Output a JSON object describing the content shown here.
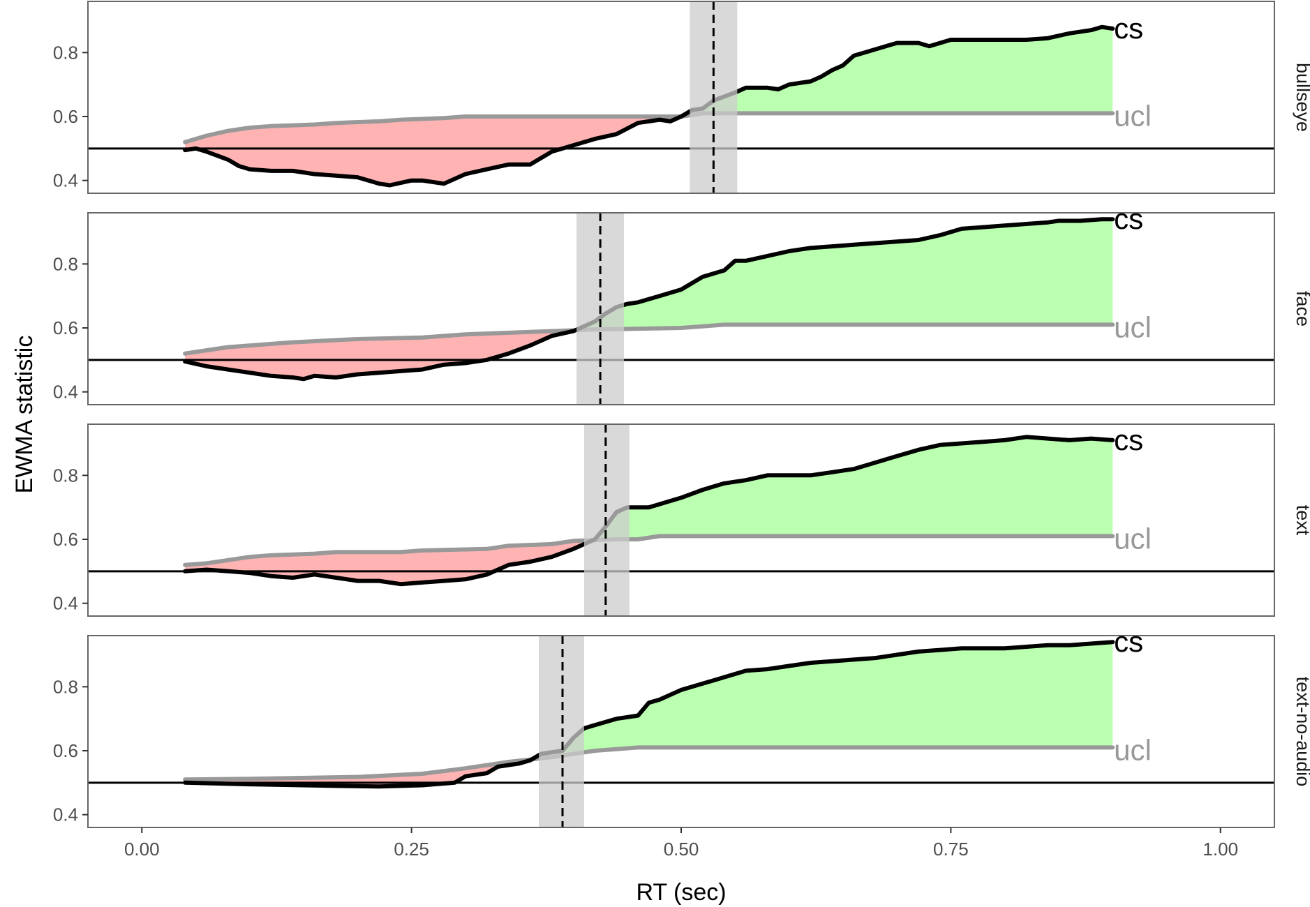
{
  "chart_data": {
    "type": "line",
    "xlabel": "RT (sec)",
    "ylabel": "EWMA statistic",
    "xlim": [
      -0.05,
      1.05
    ],
    "ylim": [
      0.36,
      0.96
    ],
    "x_ticks": [
      0.0,
      0.25,
      0.5,
      0.75,
      1.0
    ],
    "x_tick_labels": [
      "0.00",
      "0.25",
      "0.50",
      "0.75",
      "1.00"
    ],
    "y_ticks": [
      0.4,
      0.6,
      0.8
    ],
    "y_tick_labels": [
      "0.4",
      "0.6",
      "0.8"
    ],
    "reference_line": 0.5,
    "series_labels": {
      "cs": "cs",
      "ucl": "ucl"
    },
    "colors": {
      "cs": "#000000",
      "ucl": "#999999",
      "below_fill": "#ffb3b3",
      "above_fill": "#bbffb0",
      "cutoff_band": "#cccccc",
      "panel_border": "#666666"
    },
    "panels": [
      {
        "facet": "bullseye",
        "cutoff": 0.53,
        "band": [
          0.508,
          0.552
        ],
        "cs": [
          [
            0.04,
            0.495
          ],
          [
            0.05,
            0.5
          ],
          [
            0.06,
            0.49
          ],
          [
            0.08,
            0.465
          ],
          [
            0.09,
            0.445
          ],
          [
            0.1,
            0.435
          ],
          [
            0.12,
            0.43
          ],
          [
            0.14,
            0.43
          ],
          [
            0.16,
            0.42
          ],
          [
            0.18,
            0.415
          ],
          [
            0.2,
            0.41
          ],
          [
            0.22,
            0.39
          ],
          [
            0.23,
            0.385
          ],
          [
            0.25,
            0.4
          ],
          [
            0.26,
            0.4
          ],
          [
            0.28,
            0.39
          ],
          [
            0.3,
            0.42
          ],
          [
            0.32,
            0.435
          ],
          [
            0.34,
            0.45
          ],
          [
            0.36,
            0.45
          ],
          [
            0.38,
            0.49
          ],
          [
            0.4,
            0.51
          ],
          [
            0.42,
            0.53
          ],
          [
            0.44,
            0.545
          ],
          [
            0.46,
            0.58
          ],
          [
            0.48,
            0.59
          ],
          [
            0.49,
            0.585
          ],
          [
            0.5,
            0.6
          ],
          [
            0.51,
            0.62
          ],
          [
            0.52,
            0.625
          ],
          [
            0.53,
            0.65
          ],
          [
            0.55,
            0.675
          ],
          [
            0.56,
            0.69
          ],
          [
            0.58,
            0.69
          ],
          [
            0.59,
            0.685
          ],
          [
            0.6,
            0.7
          ],
          [
            0.62,
            0.71
          ],
          [
            0.63,
            0.725
          ],
          [
            0.64,
            0.745
          ],
          [
            0.65,
            0.76
          ],
          [
            0.66,
            0.79
          ],
          [
            0.68,
            0.81
          ],
          [
            0.7,
            0.83
          ],
          [
            0.72,
            0.83
          ],
          [
            0.73,
            0.82
          ],
          [
            0.74,
            0.83
          ],
          [
            0.75,
            0.84
          ],
          [
            0.77,
            0.84
          ],
          [
            0.8,
            0.84
          ],
          [
            0.82,
            0.84
          ],
          [
            0.84,
            0.845
          ],
          [
            0.86,
            0.86
          ],
          [
            0.88,
            0.87
          ],
          [
            0.89,
            0.88
          ],
          [
            0.9,
            0.875
          ]
        ],
        "ucl": [
          [
            0.04,
            0.52
          ],
          [
            0.06,
            0.54
          ],
          [
            0.08,
            0.555
          ],
          [
            0.1,
            0.565
          ],
          [
            0.12,
            0.57
          ],
          [
            0.16,
            0.575
          ],
          [
            0.18,
            0.58
          ],
          [
            0.22,
            0.585
          ],
          [
            0.24,
            0.59
          ],
          [
            0.28,
            0.595
          ],
          [
            0.3,
            0.6
          ],
          [
            0.5,
            0.6
          ],
          [
            0.52,
            0.61
          ],
          [
            0.9,
            0.61
          ]
        ]
      },
      {
        "facet": "face",
        "cutoff": 0.425,
        "band": [
          0.403,
          0.447
        ],
        "cs": [
          [
            0.04,
            0.495
          ],
          [
            0.06,
            0.48
          ],
          [
            0.08,
            0.47
          ],
          [
            0.1,
            0.46
          ],
          [
            0.12,
            0.45
          ],
          [
            0.14,
            0.445
          ],
          [
            0.15,
            0.44
          ],
          [
            0.16,
            0.45
          ],
          [
            0.18,
            0.445
          ],
          [
            0.2,
            0.455
          ],
          [
            0.22,
            0.46
          ],
          [
            0.24,
            0.465
          ],
          [
            0.26,
            0.47
          ],
          [
            0.28,
            0.485
          ],
          [
            0.3,
            0.49
          ],
          [
            0.32,
            0.5
          ],
          [
            0.34,
            0.52
          ],
          [
            0.36,
            0.545
          ],
          [
            0.38,
            0.575
          ],
          [
            0.4,
            0.59
          ],
          [
            0.42,
            0.62
          ],
          [
            0.43,
            0.645
          ],
          [
            0.44,
            0.665
          ],
          [
            0.45,
            0.675
          ],
          [
            0.46,
            0.68
          ],
          [
            0.48,
            0.7
          ],
          [
            0.5,
            0.72
          ],
          [
            0.52,
            0.76
          ],
          [
            0.54,
            0.78
          ],
          [
            0.55,
            0.81
          ],
          [
            0.56,
            0.81
          ],
          [
            0.58,
            0.825
          ],
          [
            0.6,
            0.84
          ],
          [
            0.62,
            0.85
          ],
          [
            0.64,
            0.855
          ],
          [
            0.66,
            0.86
          ],
          [
            0.68,
            0.865
          ],
          [
            0.7,
            0.87
          ],
          [
            0.72,
            0.875
          ],
          [
            0.74,
            0.89
          ],
          [
            0.76,
            0.91
          ],
          [
            0.78,
            0.915
          ],
          [
            0.8,
            0.92
          ],
          [
            0.82,
            0.925
          ],
          [
            0.84,
            0.93
          ],
          [
            0.85,
            0.935
          ],
          [
            0.87,
            0.935
          ],
          [
            0.89,
            0.94
          ],
          [
            0.9,
            0.94
          ]
        ],
        "ucl": [
          [
            0.04,
            0.52
          ],
          [
            0.06,
            0.53
          ],
          [
            0.08,
            0.54
          ],
          [
            0.1,
            0.545
          ],
          [
            0.12,
            0.55
          ],
          [
            0.14,
            0.555
          ],
          [
            0.2,
            0.565
          ],
          [
            0.26,
            0.57
          ],
          [
            0.28,
            0.575
          ],
          [
            0.3,
            0.58
          ],
          [
            0.38,
            0.59
          ],
          [
            0.42,
            0.595
          ],
          [
            0.5,
            0.6
          ],
          [
            0.54,
            0.61
          ],
          [
            0.9,
            0.61
          ]
        ]
      },
      {
        "facet": "text",
        "cutoff": 0.43,
        "band": [
          0.41,
          0.452
        ],
        "cs": [
          [
            0.04,
            0.5
          ],
          [
            0.06,
            0.505
          ],
          [
            0.08,
            0.5
          ],
          [
            0.1,
            0.495
          ],
          [
            0.12,
            0.485
          ],
          [
            0.14,
            0.48
          ],
          [
            0.16,
            0.49
          ],
          [
            0.18,
            0.48
          ],
          [
            0.2,
            0.47
          ],
          [
            0.22,
            0.47
          ],
          [
            0.24,
            0.46
          ],
          [
            0.26,
            0.465
          ],
          [
            0.28,
            0.47
          ],
          [
            0.3,
            0.475
          ],
          [
            0.32,
            0.49
          ],
          [
            0.34,
            0.52
          ],
          [
            0.36,
            0.53
          ],
          [
            0.38,
            0.545
          ],
          [
            0.4,
            0.57
          ],
          [
            0.42,
            0.6
          ],
          [
            0.43,
            0.64
          ],
          [
            0.44,
            0.685
          ],
          [
            0.45,
            0.7
          ],
          [
            0.47,
            0.7
          ],
          [
            0.48,
            0.71
          ],
          [
            0.5,
            0.73
          ],
          [
            0.52,
            0.755
          ],
          [
            0.54,
            0.775
          ],
          [
            0.56,
            0.785
          ],
          [
            0.58,
            0.8
          ],
          [
            0.6,
            0.8
          ],
          [
            0.62,
            0.8
          ],
          [
            0.64,
            0.81
          ],
          [
            0.66,
            0.82
          ],
          [
            0.68,
            0.84
          ],
          [
            0.7,
            0.86
          ],
          [
            0.72,
            0.88
          ],
          [
            0.74,
            0.895
          ],
          [
            0.76,
            0.9
          ],
          [
            0.78,
            0.905
          ],
          [
            0.8,
            0.91
          ],
          [
            0.82,
            0.92
          ],
          [
            0.84,
            0.915
          ],
          [
            0.86,
            0.91
          ],
          [
            0.88,
            0.915
          ],
          [
            0.9,
            0.91
          ]
        ],
        "ucl": [
          [
            0.04,
            0.52
          ],
          [
            0.06,
            0.525
          ],
          [
            0.08,
            0.535
          ],
          [
            0.1,
            0.545
          ],
          [
            0.12,
            0.55
          ],
          [
            0.16,
            0.555
          ],
          [
            0.18,
            0.56
          ],
          [
            0.24,
            0.56
          ],
          [
            0.26,
            0.565
          ],
          [
            0.32,
            0.57
          ],
          [
            0.34,
            0.58
          ],
          [
            0.38,
            0.585
          ],
          [
            0.4,
            0.595
          ],
          [
            0.44,
            0.6
          ],
          [
            0.46,
            0.6
          ],
          [
            0.48,
            0.61
          ],
          [
            0.9,
            0.61
          ]
        ]
      },
      {
        "facet": "text-no-audio",
        "cutoff": 0.39,
        "band": [
          0.368,
          0.41
        ],
        "cs": [
          [
            0.04,
            0.5
          ],
          [
            0.1,
            0.495
          ],
          [
            0.18,
            0.49
          ],
          [
            0.22,
            0.488
          ],
          [
            0.26,
            0.492
          ],
          [
            0.29,
            0.5
          ],
          [
            0.3,
            0.52
          ],
          [
            0.32,
            0.53
          ],
          [
            0.33,
            0.55
          ],
          [
            0.35,
            0.56
          ],
          [
            0.36,
            0.57
          ],
          [
            0.37,
            0.59
          ],
          [
            0.39,
            0.6
          ],
          [
            0.4,
            0.64
          ],
          [
            0.41,
            0.67
          ],
          [
            0.42,
            0.68
          ],
          [
            0.44,
            0.7
          ],
          [
            0.46,
            0.71
          ],
          [
            0.47,
            0.75
          ],
          [
            0.48,
            0.76
          ],
          [
            0.5,
            0.79
          ],
          [
            0.52,
            0.81
          ],
          [
            0.54,
            0.83
          ],
          [
            0.56,
            0.85
          ],
          [
            0.58,
            0.855
          ],
          [
            0.6,
            0.865
          ],
          [
            0.62,
            0.875
          ],
          [
            0.64,
            0.88
          ],
          [
            0.66,
            0.885
          ],
          [
            0.68,
            0.89
          ],
          [
            0.7,
            0.9
          ],
          [
            0.72,
            0.91
          ],
          [
            0.74,
            0.915
          ],
          [
            0.76,
            0.92
          ],
          [
            0.8,
            0.92
          ],
          [
            0.82,
            0.925
          ],
          [
            0.84,
            0.93
          ],
          [
            0.86,
            0.93
          ],
          [
            0.88,
            0.935
          ],
          [
            0.9,
            0.94
          ]
        ],
        "ucl": [
          [
            0.04,
            0.51
          ],
          [
            0.1,
            0.512
          ],
          [
            0.2,
            0.518
          ],
          [
            0.26,
            0.528
          ],
          [
            0.3,
            0.545
          ],
          [
            0.34,
            0.565
          ],
          [
            0.38,
            0.58
          ],
          [
            0.42,
            0.6
          ],
          [
            0.46,
            0.61
          ],
          [
            0.9,
            0.61
          ]
        ]
      }
    ]
  }
}
